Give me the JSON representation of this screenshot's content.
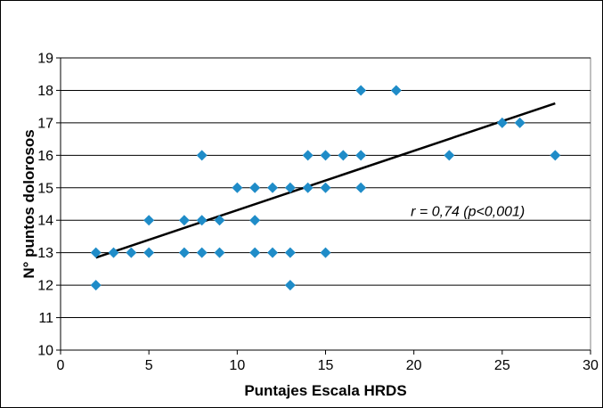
{
  "chart_data": {
    "type": "scatter",
    "title": "",
    "xlabel": "Puntajes Escala HRDS",
    "ylabel": "N° puntos dolorosos",
    "xlim": [
      0,
      30
    ],
    "ylim": [
      10,
      19
    ],
    "xticks": [
      0,
      5,
      10,
      15,
      20,
      25,
      30
    ],
    "yticks": [
      10,
      11,
      12,
      13,
      14,
      15,
      16,
      17,
      18,
      19
    ],
    "grid": "horizontal",
    "marker": "diamond",
    "marker_color": "#1F8CC8",
    "series": [
      {
        "points": [
          [
            2,
            13
          ],
          [
            2,
            12
          ],
          [
            3,
            13
          ],
          [
            4,
            13
          ],
          [
            5,
            13
          ],
          [
            5,
            14
          ],
          [
            7,
            14
          ],
          [
            7,
            13
          ],
          [
            8,
            16
          ],
          [
            8,
            14
          ],
          [
            8,
            13
          ],
          [
            9,
            14
          ],
          [
            9,
            13
          ],
          [
            10,
            15
          ],
          [
            11,
            15
          ],
          [
            11,
            14
          ],
          [
            11,
            13
          ],
          [
            12,
            15
          ],
          [
            12,
            13
          ],
          [
            13,
            15
          ],
          [
            13,
            13
          ],
          [
            13,
            12
          ],
          [
            14,
            16
          ],
          [
            14,
            15
          ],
          [
            15,
            16
          ],
          [
            15,
            15
          ],
          [
            15,
            13
          ],
          [
            16,
            16
          ],
          [
            17,
            18
          ],
          [
            17,
            16
          ],
          [
            17,
            15
          ],
          [
            19,
            18
          ],
          [
            22,
            16
          ],
          [
            25,
            17
          ],
          [
            26,
            17
          ],
          [
            28,
            16
          ]
        ]
      }
    ],
    "trendline": {
      "x": [
        2,
        28
      ],
      "y": [
        12.85,
        17.6
      ],
      "color": "#000000"
    },
    "annotations": [
      {
        "text": "r = 0,74 (p<0,001)",
        "x": 23,
        "y": 14.3
      }
    ]
  }
}
